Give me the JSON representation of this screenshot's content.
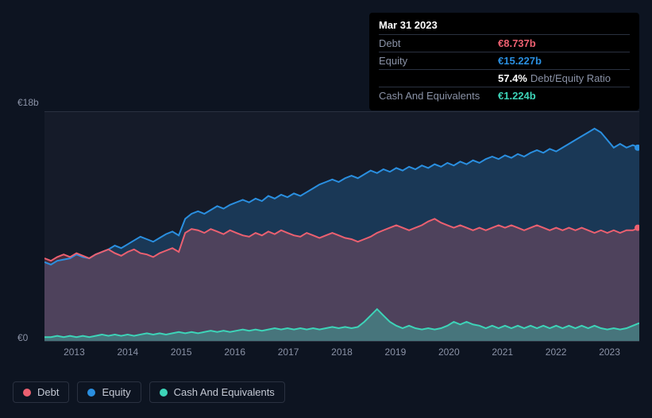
{
  "tooltip": {
    "date": "Mar 31 2023",
    "rows": [
      {
        "label": "Debt",
        "value": "€8.737b",
        "colorClass": "c-debt"
      },
      {
        "label": "Equity",
        "value": "€15.227b",
        "colorClass": "c-equity"
      },
      {
        "label": "",
        "value": "57.4%",
        "colorClass": "c-white",
        "extra": "Debt/Equity Ratio"
      },
      {
        "label": "Cash And Equivalents",
        "value": "€1.224b",
        "colorClass": "c-cash"
      }
    ]
  },
  "chart": {
    "type": "area",
    "y_axis": {
      "max_label": "€18b",
      "min_label": "€0",
      "ylim": [
        0,
        18
      ],
      "label_fontsize": 12
    },
    "x_axis": {
      "ticks": [
        "2013",
        "2014",
        "2015",
        "2016",
        "2017",
        "2018",
        "2019",
        "2020",
        "2021",
        "2022",
        "2023"
      ],
      "tick_positions_pct": [
        5,
        14,
        23,
        32,
        41,
        50,
        59,
        68,
        77,
        86,
        95
      ]
    },
    "background_color": "#151b29",
    "grid_color": "#2a3140",
    "colors": {
      "debt": "#ec6070",
      "equity": "#2a8fe0",
      "cash": "#3dd4b8"
    },
    "fill_opacity": 0.25,
    "line_width": 2,
    "series": {
      "equity": [
        6.2,
        6.0,
        6.3,
        6.4,
        6.5,
        6.8,
        6.6,
        6.5,
        6.8,
        7.0,
        7.2,
        7.5,
        7.3,
        7.6,
        7.9,
        8.2,
        8.0,
        7.8,
        8.1,
        8.4,
        8.6,
        8.3,
        9.6,
        10.0,
        10.2,
        10.0,
        10.3,
        10.6,
        10.4,
        10.7,
        10.9,
        11.1,
        10.9,
        11.2,
        11.0,
        11.4,
        11.2,
        11.5,
        11.3,
        11.6,
        11.4,
        11.7,
        12.0,
        12.3,
        12.5,
        12.7,
        12.5,
        12.8,
        13.0,
        12.8,
        13.1,
        13.4,
        13.2,
        13.5,
        13.3,
        13.6,
        13.4,
        13.7,
        13.5,
        13.8,
        13.6,
        13.9,
        13.7,
        14.0,
        13.8,
        14.1,
        13.9,
        14.2,
        14.0,
        14.3,
        14.5,
        14.3,
        14.6,
        14.4,
        14.7,
        14.5,
        14.8,
        15.0,
        14.8,
        15.1,
        14.9,
        15.2,
        15.5,
        15.8,
        16.1,
        16.4,
        16.7,
        16.4,
        15.8,
        15.2,
        15.5,
        15.2,
        15.4,
        15.2
      ],
      "debt": [
        6.5,
        6.3,
        6.6,
        6.8,
        6.6,
        6.9,
        6.7,
        6.5,
        6.8,
        7.0,
        7.2,
        6.9,
        6.7,
        7.0,
        7.2,
        6.9,
        6.8,
        6.6,
        6.9,
        7.1,
        7.3,
        7.0,
        8.5,
        8.8,
        8.7,
        8.5,
        8.8,
        8.6,
        8.4,
        8.7,
        8.5,
        8.3,
        8.2,
        8.5,
        8.3,
        8.6,
        8.4,
        8.7,
        8.5,
        8.3,
        8.2,
        8.5,
        8.3,
        8.1,
        8.3,
        8.5,
        8.3,
        8.1,
        8.0,
        7.8,
        8.0,
        8.2,
        8.5,
        8.7,
        8.9,
        9.1,
        8.9,
        8.7,
        8.9,
        9.1,
        9.4,
        9.6,
        9.3,
        9.1,
        8.9,
        9.1,
        8.9,
        8.7,
        8.9,
        8.7,
        8.9,
        9.1,
        8.9,
        9.1,
        8.9,
        8.7,
        8.9,
        9.1,
        8.9,
        8.7,
        8.9,
        8.7,
        8.9,
        8.7,
        8.9,
        8.7,
        8.5,
        8.7,
        8.5,
        8.7,
        8.5,
        8.7,
        8.7,
        8.9
      ],
      "cash": [
        0.3,
        0.3,
        0.4,
        0.3,
        0.4,
        0.3,
        0.4,
        0.3,
        0.4,
        0.5,
        0.4,
        0.5,
        0.4,
        0.5,
        0.4,
        0.5,
        0.6,
        0.5,
        0.6,
        0.5,
        0.6,
        0.7,
        0.6,
        0.7,
        0.6,
        0.7,
        0.8,
        0.7,
        0.8,
        0.7,
        0.8,
        0.9,
        0.8,
        0.9,
        0.8,
        0.9,
        1.0,
        0.9,
        1.0,
        0.9,
        1.0,
        0.9,
        1.0,
        0.9,
        1.0,
        1.1,
        1.0,
        1.1,
        1.0,
        1.1,
        1.5,
        2.0,
        2.5,
        2.0,
        1.5,
        1.2,
        1.0,
        1.2,
        1.0,
        0.9,
        1.0,
        0.9,
        1.0,
        1.2,
        1.5,
        1.3,
        1.5,
        1.3,
        1.2,
        1.0,
        1.2,
        1.0,
        1.2,
        1.0,
        1.2,
        1.0,
        1.2,
        1.0,
        1.2,
        1.0,
        1.2,
        1.0,
        1.2,
        1.0,
        1.2,
        1.0,
        1.2,
        1.0,
        0.9,
        1.0,
        0.9,
        1.0,
        1.2,
        1.4
      ]
    }
  },
  "legend": {
    "items": [
      {
        "label": "Debt",
        "color": "#ec6070"
      },
      {
        "label": "Equity",
        "color": "#2a8fe0"
      },
      {
        "label": "Cash And Equivalents",
        "color": "#3dd4b8"
      }
    ]
  }
}
